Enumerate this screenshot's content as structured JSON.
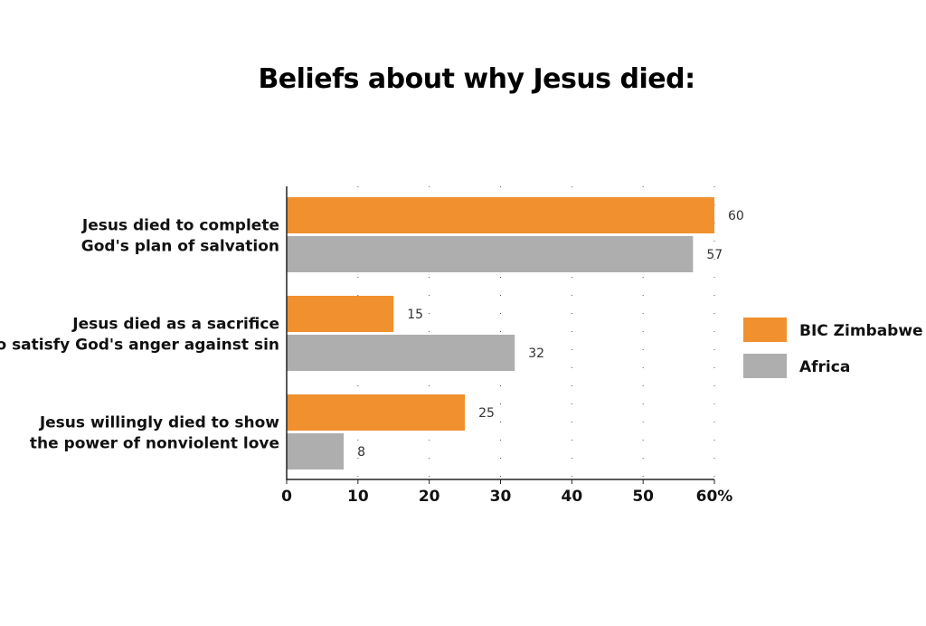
{
  "chart_data": {
    "type": "bar",
    "orientation": "horizontal",
    "title": "Beliefs about why Jesus died:",
    "categories": [
      [
        "Jesus died to complete",
        "God's plan of salvation"
      ],
      [
        "Jesus died as a sacrifice",
        "to satisfy God's anger against sin"
      ],
      [
        "Jesus willingly died to show",
        "the power of nonviolent love"
      ]
    ],
    "series": [
      {
        "name": "BIC Zimbabwe",
        "color": "#f0902f",
        "values": [
          60,
          15,
          25
        ]
      },
      {
        "name": "Africa",
        "color": "#aeaeae",
        "values": [
          57,
          32,
          8
        ]
      }
    ],
    "xlim": [
      0,
      60
    ],
    "xticks": [
      "0",
      "10",
      "20",
      "30",
      "40",
      "50",
      "60%"
    ],
    "grid": true,
    "legend": "right"
  }
}
